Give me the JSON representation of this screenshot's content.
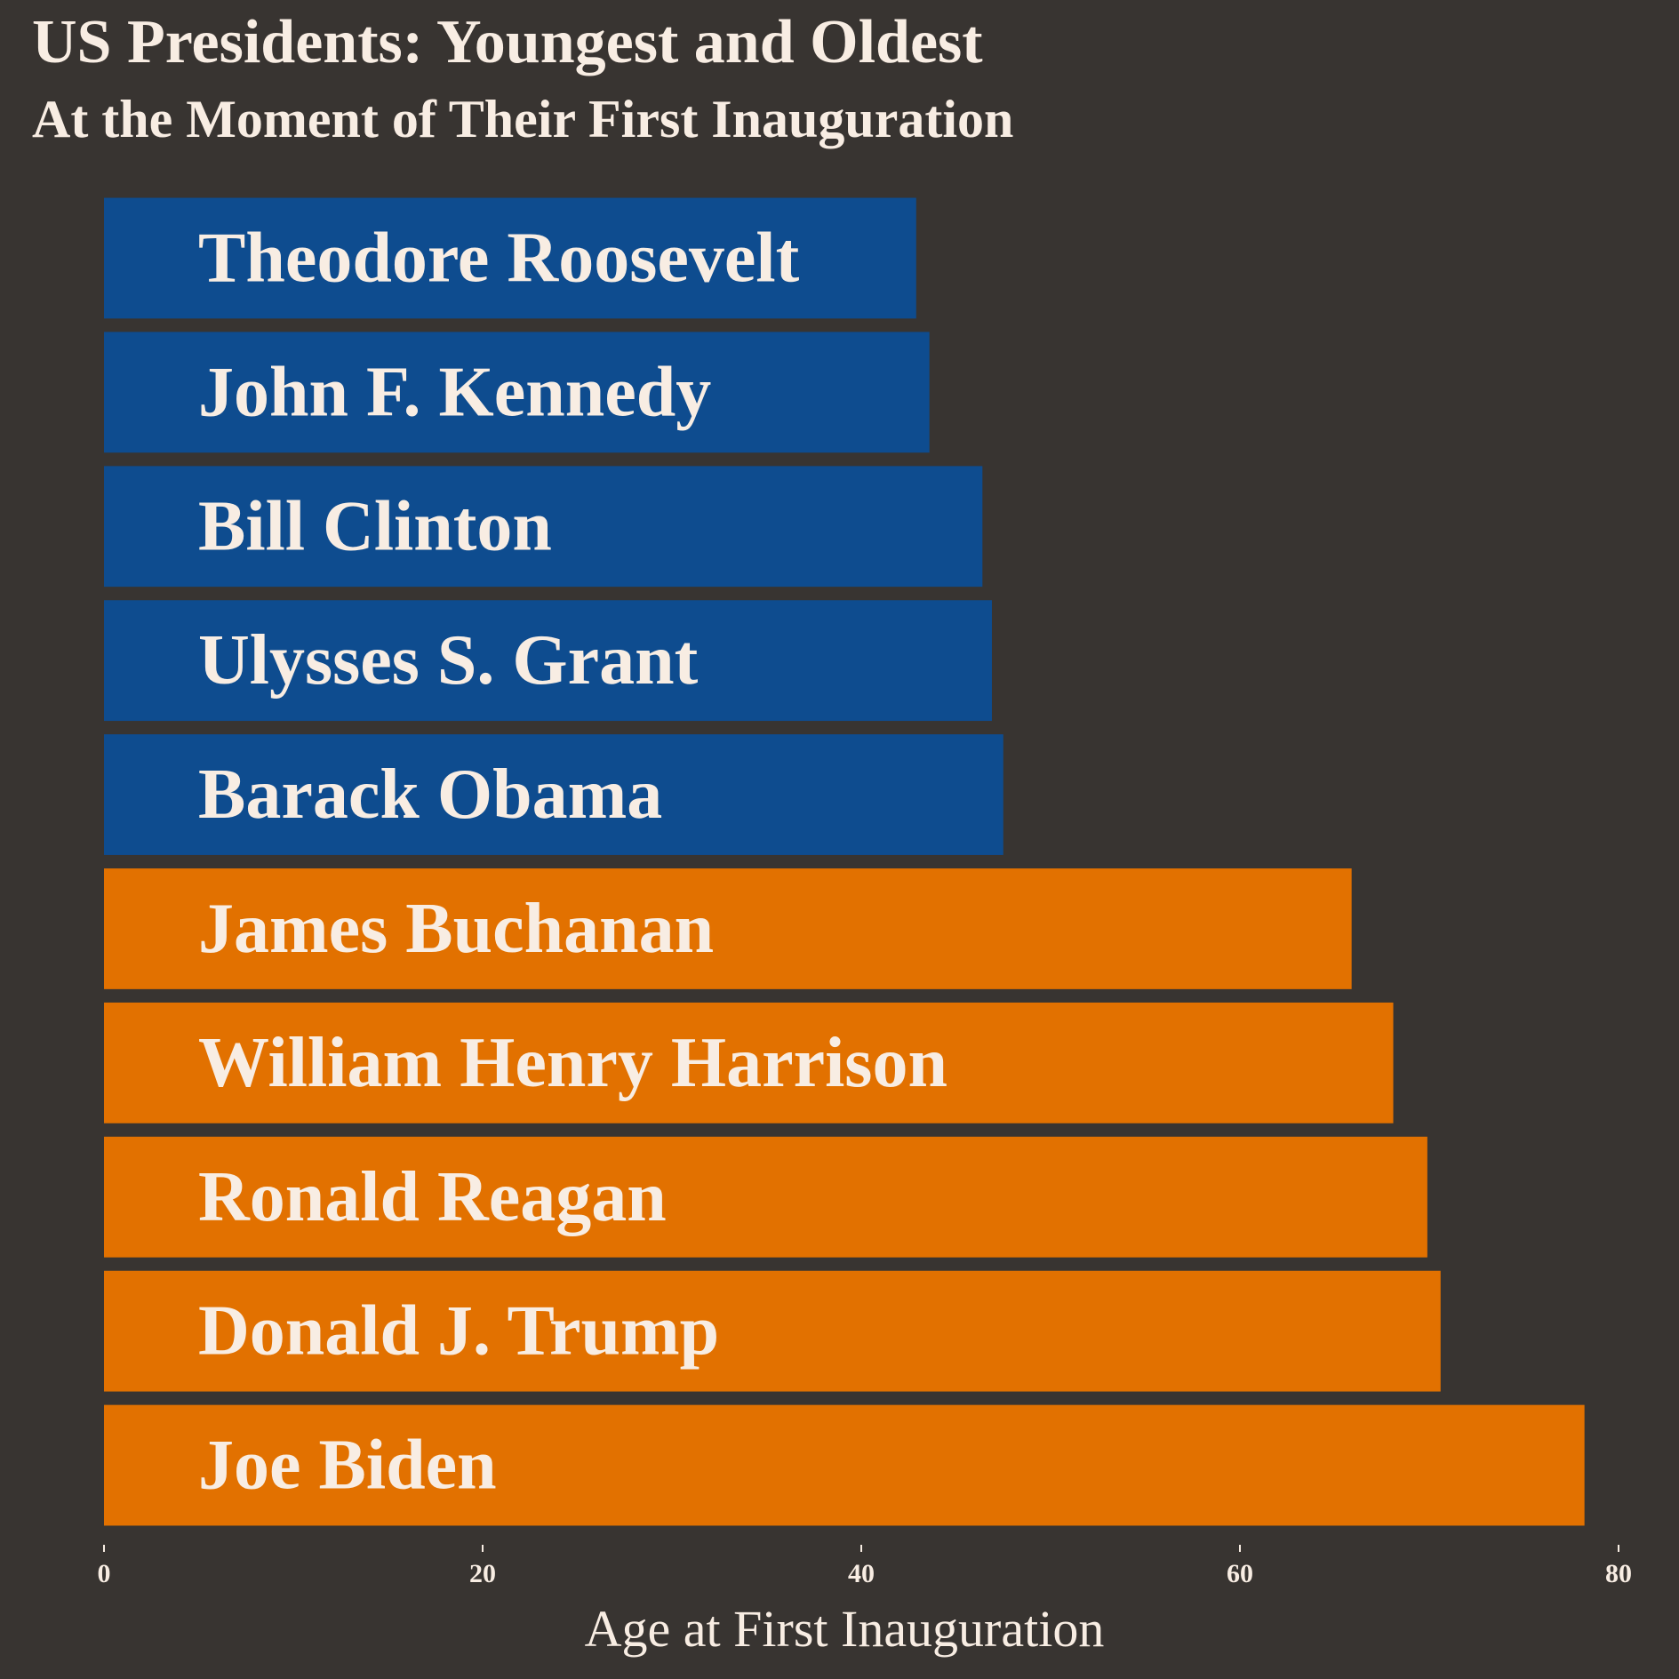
{
  "colors": {
    "background": "#383431",
    "text": "#f8ede3",
    "youngest": "#0e4c8f",
    "oldest": "#e27100"
  },
  "chart_data": {
    "type": "bar",
    "orientation": "horizontal",
    "title": "US Presidents: Youngest and Oldest",
    "subtitle": "At the Moment of Their First Inauguration",
    "xlabel": "Age at First Inauguration",
    "ylabel": "",
    "xlim": [
      0,
      80
    ],
    "xticks": [
      0,
      20,
      40,
      60,
      80
    ],
    "grid": false,
    "legend": "none",
    "categories": [
      "Theodore Roosevelt",
      "John F. Kennedy",
      "Bill Clinton",
      "Ulysses S. Grant",
      "Barack Obama",
      "James Buchanan",
      "William Henry Harrison",
      "Ronald Reagan",
      "Donald J. Trump",
      "Joe Biden"
    ],
    "values": [
      42.9,
      43.6,
      46.4,
      46.9,
      47.5,
      65.9,
      68.1,
      69.9,
      70.6,
      78.2
    ],
    "groups": [
      "youngest",
      "youngest",
      "youngest",
      "youngest",
      "youngest",
      "oldest",
      "oldest",
      "oldest",
      "oldest",
      "oldest"
    ]
  }
}
